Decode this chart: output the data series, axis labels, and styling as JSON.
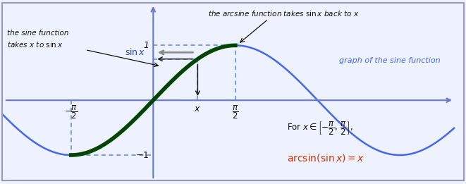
{
  "fig_width": 6.61,
  "fig_height": 2.61,
  "dpi": 100,
  "bg_color": "#eef2ff",
  "border_color": "#9999bb",
  "sine_color": "#4466ee",
  "highlight_color": "#004400",
  "highlight_linewidth": 4.0,
  "sine_linewidth": 1.8,
  "axis_color": "#6677cc",
  "dashed_color": "#5588dd",
  "arrow_color": "#222222",
  "text_color_blue": "#2244cc",
  "text_color_orange": "#cc3300",
  "text_color_black": "#111111",
  "x_val": 0.85,
  "xlim": [
    -2.9,
    5.8
  ],
  "ylim": [
    -1.5,
    1.8
  ],
  "pi_half": 1.5707963267948966
}
